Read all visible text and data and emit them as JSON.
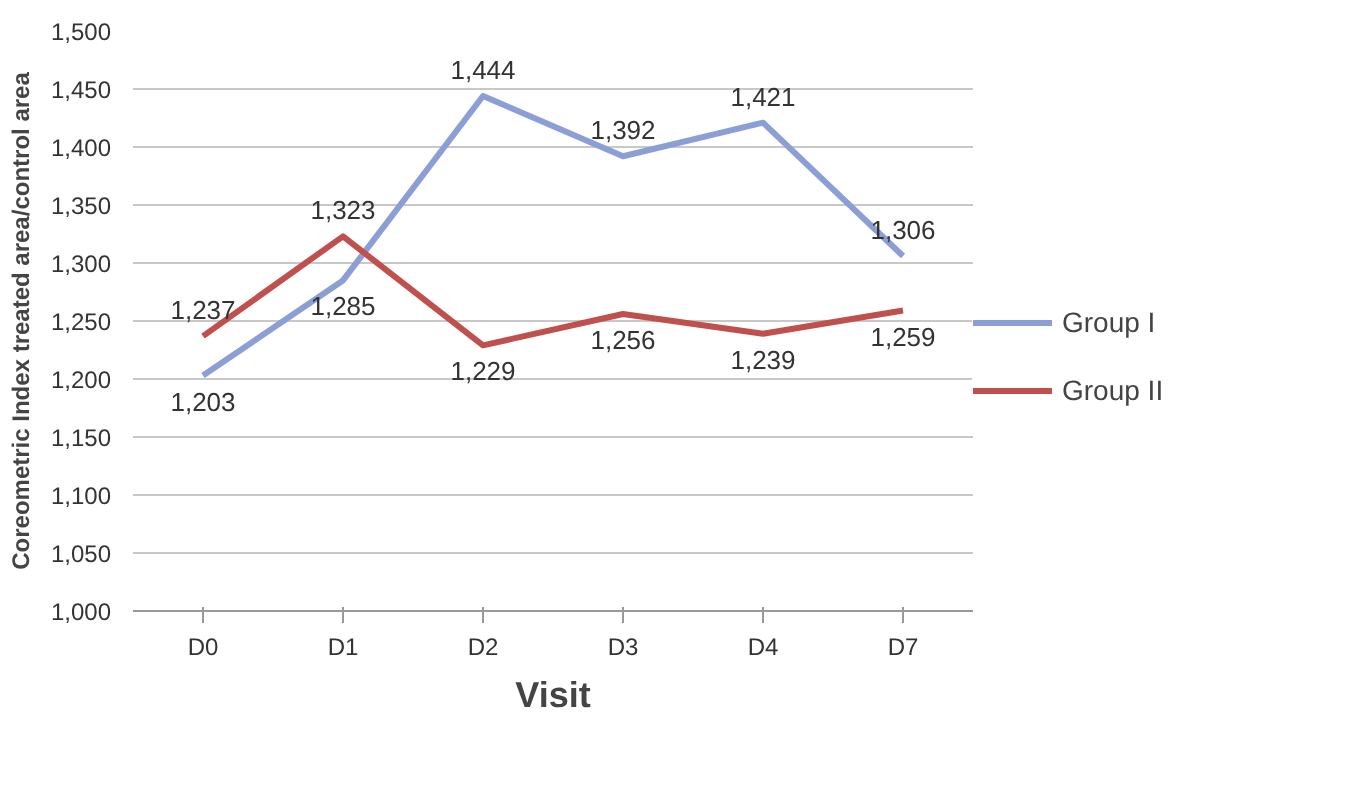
{
  "chart_data": {
    "type": "line",
    "xlabel": "Visit",
    "ylabel": "Coreometric Index treated area/control area",
    "categories": [
      "D0",
      "D1",
      "D2",
      "D3",
      "D4",
      "D7"
    ],
    "series": [
      {
        "name": "Group I",
        "color": "#8b9fd6",
        "values": [
          1203,
          1285,
          1444,
          1392,
          1421,
          1306
        ],
        "value_labels": [
          "1,203",
          "1,285",
          "1,444",
          "1,392",
          "1,421",
          "1,306"
        ]
      },
      {
        "name": "Group II",
        "color": "#c0504d",
        "values": [
          1237,
          1323,
          1229,
          1256,
          1239,
          1259
        ],
        "value_labels": [
          "1,237",
          "1,323",
          "1,229",
          "1,256",
          "1,239",
          "1,259"
        ]
      }
    ],
    "ylim": [
      1000,
      1500
    ],
    "yticks": [
      {
        "value": 1000,
        "label": "1,000"
      },
      {
        "value": 1050,
        "label": "1,050"
      },
      {
        "value": 1100,
        "label": "1,100"
      },
      {
        "value": 1150,
        "label": "1,150"
      },
      {
        "value": 1200,
        "label": "1,200"
      },
      {
        "value": 1250,
        "label": "1,250"
      },
      {
        "value": 1300,
        "label": "1,300"
      },
      {
        "value": 1350,
        "label": "1,350"
      },
      {
        "value": 1400,
        "label": "1,400"
      },
      {
        "value": 1450,
        "label": "1,450"
      },
      {
        "value": 1500,
        "label": "1,500"
      }
    ],
    "grid": "y",
    "legend": "right",
    "marker": "none",
    "line_style": "solid"
  }
}
